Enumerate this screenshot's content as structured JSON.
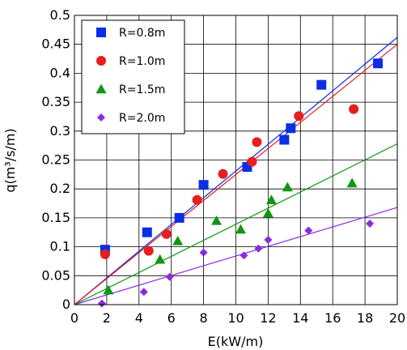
{
  "chart_data": {
    "type": "scatter",
    "xlabel": "E(kW/m)",
    "ylabel": "q(m³/s/m)",
    "xlim": [
      0,
      20
    ],
    "ylim": [
      0,
      0.5
    ],
    "x_ticks": [
      0,
      2,
      4,
      6,
      8,
      10,
      12,
      14,
      16,
      18,
      20
    ],
    "y_ticks": [
      0,
      0.05,
      0.1,
      0.15,
      0.2,
      0.25,
      0.3,
      0.35,
      0.4,
      0.45,
      0.5
    ],
    "x_tick_labels": [
      "0",
      "2",
      "4",
      "6",
      "8",
      "10",
      "12",
      "14",
      "16",
      "18",
      "20"
    ],
    "y_tick_labels": [
      "0",
      "0.05",
      "0.1",
      "0.15",
      "0.2",
      "0.25",
      "0.3",
      "0.35",
      "0.4",
      "0.45",
      "0.5"
    ],
    "grid": true,
    "legend_position": "top-left",
    "series": [
      {
        "name": "R=0.8m",
        "marker": "square",
        "color": "#0a2ee6",
        "points": [
          [
            1.9,
            0.095
          ],
          [
            4.5,
            0.125
          ],
          [
            6.5,
            0.15
          ],
          [
            8.0,
            0.207
          ],
          [
            10.7,
            0.238
          ],
          [
            13.0,
            0.285
          ],
          [
            13.4,
            0.305
          ],
          [
            15.3,
            0.38
          ],
          [
            18.8,
            0.417
          ]
        ],
        "fit_slope": 0.0231
      },
      {
        "name": "R=1.0m",
        "marker": "circle",
        "color": "#e61e1e",
        "points": [
          [
            1.9,
            0.087
          ],
          [
            4.6,
            0.093
          ],
          [
            5.7,
            0.122
          ],
          [
            7.6,
            0.181
          ],
          [
            9.2,
            0.226
          ],
          [
            11.0,
            0.247
          ],
          [
            11.3,
            0.281
          ],
          [
            13.9,
            0.326
          ],
          [
            17.3,
            0.338
          ]
        ],
        "fit_slope": 0.0225
      },
      {
        "name": "R=1.5m",
        "marker": "triangle",
        "color": "#109610",
        "points": [
          [
            2.1,
            0.025
          ],
          [
            5.3,
            0.078
          ],
          [
            6.4,
            0.11
          ],
          [
            8.8,
            0.145
          ],
          [
            10.3,
            0.13
          ],
          [
            12.0,
            0.158
          ],
          [
            12.2,
            0.181
          ],
          [
            13.2,
            0.203
          ],
          [
            17.2,
            0.21
          ]
        ],
        "fit_slope": 0.0139
      },
      {
        "name": "R=2.0m",
        "marker": "diamond",
        "color": "#8a2be2",
        "points": [
          [
            1.7,
            0.002
          ],
          [
            4.3,
            0.022
          ],
          [
            5.9,
            0.048
          ],
          [
            8.0,
            0.09
          ],
          [
            10.5,
            0.085
          ],
          [
            11.4,
            0.097
          ],
          [
            12.0,
            0.112
          ],
          [
            14.5,
            0.128
          ],
          [
            18.3,
            0.14
          ]
        ],
        "fit_slope": 0.0084
      }
    ]
  }
}
